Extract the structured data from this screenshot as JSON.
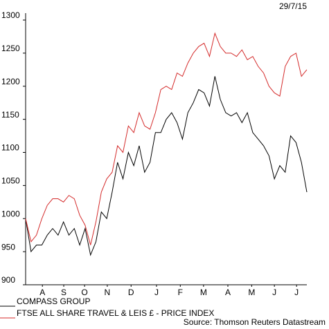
{
  "chart_data": {
    "type": "line",
    "date_label": "29/7/15",
    "source": "Source: Thomson Reuters Datastream",
    "x": [
      0,
      1,
      2,
      3,
      4,
      5,
      6,
      7,
      8,
      9,
      10,
      11,
      12,
      13,
      14,
      15,
      16,
      17,
      18,
      19,
      20,
      21,
      22,
      23,
      24,
      25,
      26,
      27,
      28,
      29,
      30,
      31,
      32,
      33,
      34,
      35,
      36,
      37,
      38,
      39,
      40,
      41,
      42,
      43,
      44,
      45,
      46,
      47,
      48,
      49,
      50,
      51,
      52
    ],
    "xlim": [
      0,
      52
    ],
    "xticks": [
      {
        "value": 3.1,
        "label": "A"
      },
      {
        "value": 7.05,
        "label": "S"
      },
      {
        "value": 10.9,
        "label": "O"
      },
      {
        "value": 15.1,
        "label": "N"
      },
      {
        "value": 19.5,
        "label": "D"
      },
      {
        "value": 24.2,
        "label": "J"
      },
      {
        "value": 28.6,
        "label": "F"
      },
      {
        "value": 32.9,
        "label": "M"
      },
      {
        "value": 37.4,
        "label": "A"
      },
      {
        "value": 41.8,
        "label": "M"
      },
      {
        "value": 46,
        "label": "J"
      },
      {
        "value": 50.1,
        "label": "J"
      }
    ],
    "ylim": [
      900,
      1300
    ],
    "yticks": [
      900,
      950,
      1000,
      1050,
      1100,
      1150,
      1200,
      1250,
      1300
    ],
    "grid": false,
    "series": [
      {
        "name": "COMPASS GROUP",
        "color": "#000000",
        "values": [
          1000,
          950,
          960,
          960,
          975,
          985,
          975,
          995,
          975,
          985,
          960,
          985,
          945,
          965,
          1010,
          1000,
          1040,
          1085,
          1060,
          1100,
          1080,
          1110,
          1070,
          1085,
          1130,
          1130,
          1150,
          1160,
          1145,
          1120,
          1160,
          1175,
          1195,
          1190,
          1170,
          1215,
          1180,
          1160,
          1155,
          1160,
          1145,
          1160,
          1130,
          1120,
          1110,
          1095,
          1060,
          1080,
          1070,
          1125,
          1115,
          1085,
          1040
        ]
      },
      {
        "name": "FTSE ALL SHARE TRAVEL & LEIS £ - PRICE INDEX",
        "color": "#d42a2a",
        "values": [
          1000,
          965,
          975,
          1000,
          1020,
          1030,
          1030,
          1025,
          1035,
          1030,
          1005,
          990,
          960,
          995,
          1040,
          1060,
          1070,
          1110,
          1100,
          1140,
          1130,
          1160,
          1140,
          1135,
          1160,
          1195,
          1200,
          1195,
          1220,
          1215,
          1235,
          1250,
          1260,
          1265,
          1245,
          1280,
          1260,
          1250,
          1250,
          1245,
          1255,
          1240,
          1245,
          1230,
          1220,
          1200,
          1190,
          1185,
          1230,
          1245,
          1250,
          1215,
          1225
        ]
      }
    ]
  }
}
